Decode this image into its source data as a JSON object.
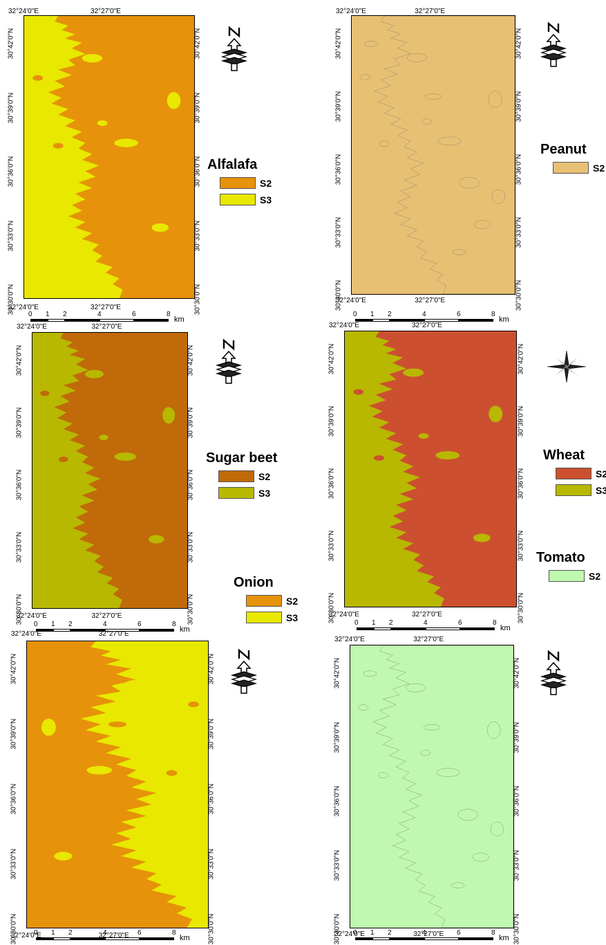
{
  "maps": [
    {
      "id": "alfalafa",
      "title": "Alfalafa",
      "legend": [
        {
          "label": "S2",
          "color": "#e6920a"
        },
        {
          "label": "S3",
          "color": "#e8e800"
        }
      ],
      "base_color": "#e8e800",
      "zone_color": "#e6920a",
      "outline_only": false,
      "north_style": "stacked-arrow",
      "top_lon": [
        "32°24'0\"E",
        "32°27'0\"E"
      ],
      "bottom_lon": [
        "32°24'0\"E",
        "32°27'0\"E"
      ],
      "lat": [
        "30°42'0\"N",
        "30°39'0\"N",
        "30°36'0\"N",
        "30°33'0\"N",
        "30°30'0\"N"
      ],
      "scale": {
        "ticks": [
          "0",
          "1",
          "2",
          "4",
          "6",
          "8"
        ],
        "unit": "km"
      }
    },
    {
      "id": "peanut",
      "title": "Peanut",
      "legend": [
        {
          "label": "S2",
          "color": "#e8c074"
        }
      ],
      "base_color": "#e8c074",
      "zone_color": "#e8c074",
      "outline_only": true,
      "north_style": "stacked-arrow",
      "top_lon": [
        "32°24'0\"E",
        "32°27'0\"E"
      ],
      "bottom_lon": [
        "32°24'0\"E",
        "32°27'0\"E"
      ],
      "lat": [
        "30°42'0\"N",
        "30°39'0\"N",
        "30°36'0\"N",
        "30°33'0\"N",
        "30°30'0\"N"
      ],
      "scale": {
        "ticks": [
          "0",
          "1",
          "2",
          "4",
          "6",
          "8"
        ],
        "unit": "km"
      }
    },
    {
      "id": "sugar-beet",
      "title": "Sugar beet",
      "legend": [
        {
          "label": "S2",
          "color": "#c06a0a"
        },
        {
          "label": "S3",
          "color": "#b8b800"
        }
      ],
      "base_color": "#b8b800",
      "zone_color": "#c06a0a",
      "outline_only": false,
      "north_style": "stacked-arrow",
      "top_lon": [
        "32°24'0\"E",
        "32°27'0\"E"
      ],
      "bottom_lon": [
        "32°24'0\"E",
        "32°27'0\"E"
      ],
      "lat": [
        "30°42'0\"N",
        "30°39'0\"N",
        "30°36'0\"N",
        "30°33'0\"N",
        "30°30'0\"N"
      ],
      "scale": {
        "ticks": [
          "0",
          "1",
          "2",
          "4",
          "6",
          "8"
        ],
        "unit": "km"
      }
    },
    {
      "id": "wheat",
      "title": "Wheat",
      "legend": [
        {
          "label": "S2",
          "color": "#cc5030"
        },
        {
          "label": "S3",
          "color": "#b8b800"
        }
      ],
      "base_color": "#b8b800",
      "zone_color": "#cc5030",
      "outline_only": false,
      "north_style": "compass-rose",
      "top_lon": [
        "32°24'0\"E",
        "32°27'0\"E"
      ],
      "bottom_lon": [
        "32°24'0\"E",
        "32°27'0\"E"
      ],
      "lat": [
        "30°42'0\"N",
        "30°39'0\"N",
        "30°36'0\"N",
        "30°33'0\"N",
        "30°30'0\"N"
      ],
      "scale": {
        "ticks": [
          "0",
          "1",
          "2",
          "4",
          "6",
          "8"
        ],
        "unit": "km"
      }
    },
    {
      "id": "onion",
      "title": "Onion",
      "legend": [
        {
          "label": "S2",
          "color": "#e6920a"
        },
        {
          "label": "S3",
          "color": "#e8e800"
        }
      ],
      "base_color": "#e8e800",
      "zone_color": "#e6920a",
      "outline_only": false,
      "mirror": true,
      "north_style": "stacked-arrow",
      "top_lon": [
        "32°24'0\"E",
        "32°27'0\"E"
      ],
      "bottom_lon": [
        "32°24'0\"E",
        "32°27'0\"E"
      ],
      "lat": [
        "30°42'0\"N",
        "30°39'0\"N",
        "30°36'0\"N",
        "30°33'0\"N",
        "30°30'0\"N"
      ],
      "scale": {
        "ticks": [
          "0",
          "1",
          "2",
          "4",
          "6",
          "8"
        ],
        "unit": "km"
      }
    },
    {
      "id": "tomato",
      "title": "Tomato",
      "legend": [
        {
          "label": "S2",
          "color": "#c0f8b0"
        }
      ],
      "base_color": "#c0f8b0",
      "zone_color": "#c0f8b0",
      "outline_only": true,
      "north_style": "stacked-arrow",
      "top_lon": [
        "32°24'0\"E",
        "32°27'0\"E"
      ],
      "bottom_lon": [
        "32°24'0\"E",
        "32°27'0\"E"
      ],
      "lat": [
        "30°42'0\"N",
        "30°39'0\"N",
        "30°36'0\"N",
        "30°33'0\"N",
        "30°30'0\"N"
      ],
      "scale": {
        "ticks": [
          "0",
          "1",
          "2",
          "4",
          "6",
          "8"
        ],
        "unit": "km"
      }
    }
  ]
}
